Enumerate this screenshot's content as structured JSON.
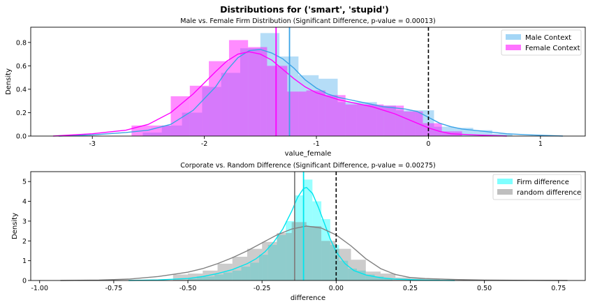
{
  "figure": {
    "suptitle": "Distributions for ('smart', 'stupid')"
  },
  "chart_data": [
    {
      "type": "histogram",
      "title": "Male vs. Female Firm Distribution (Significant Difference, p-value = 0.00013)",
      "xlabel": "value_female",
      "ylabel": "Density",
      "xlim": [
        -3.55,
        1.4
      ],
      "ylim": [
        0,
        0.93
      ],
      "xticks": [
        -3,
        -2,
        -1,
        0,
        1
      ],
      "yticks": [
        0.0,
        0.2,
        0.4,
        0.6,
        0.8
      ],
      "grid": false,
      "legend_position": "top-right",
      "series": [
        {
          "name": "Male Context",
          "color": "#5ab4ee",
          "bins": [
            [
              -2.55,
              -2.38,
              0.03
            ],
            [
              -2.38,
              -2.2,
              0.09
            ],
            [
              -2.2,
              -2.02,
              0.2
            ],
            [
              -2.02,
              -1.85,
              0.42
            ],
            [
              -1.85,
              -1.68,
              0.54
            ],
            [
              -1.68,
              -1.5,
              0.75
            ],
            [
              -1.5,
              -1.33,
              0.88
            ],
            [
              -1.33,
              -1.16,
              0.68
            ],
            [
              -1.16,
              -0.98,
              0.52
            ],
            [
              -0.98,
              -0.81,
              0.49
            ],
            [
              -0.81,
              -0.64,
              0.29
            ],
            [
              -0.64,
              -0.46,
              0.29
            ],
            [
              -0.46,
              -0.29,
              0.26
            ],
            [
              -0.29,
              -0.12,
              0.22
            ],
            [
              -0.12,
              0.05,
              0.22
            ],
            [
              0.05,
              0.23,
              0.08
            ],
            [
              0.23,
              0.4,
              0.07
            ],
            [
              0.4,
              0.57,
              0.05
            ],
            [
              0.57,
              0.75,
              0.02
            ]
          ],
          "kde": [
            [
              -3.3,
              0.0
            ],
            [
              -3.0,
              0.01
            ],
            [
              -2.7,
              0.03
            ],
            [
              -2.5,
              0.05
            ],
            [
              -2.3,
              0.1
            ],
            [
              -2.1,
              0.22
            ],
            [
              -1.9,
              0.42
            ],
            [
              -1.8,
              0.56
            ],
            [
              -1.7,
              0.67
            ],
            [
              -1.6,
              0.73
            ],
            [
              -1.5,
              0.74
            ],
            [
              -1.4,
              0.71
            ],
            [
              -1.3,
              0.66
            ],
            [
              -1.2,
              0.58
            ],
            [
              -1.1,
              0.48
            ],
            [
              -1.0,
              0.41
            ],
            [
              -0.9,
              0.36
            ],
            [
              -0.8,
              0.33
            ],
            [
              -0.7,
              0.31
            ],
            [
              -0.6,
              0.29
            ],
            [
              -0.5,
              0.27
            ],
            [
              -0.4,
              0.25
            ],
            [
              -0.3,
              0.24
            ],
            [
              -0.2,
              0.23
            ],
            [
              -0.1,
              0.21
            ],
            [
              0.0,
              0.16
            ],
            [
              0.1,
              0.11
            ],
            [
              0.2,
              0.08
            ],
            [
              0.3,
              0.06
            ],
            [
              0.4,
              0.05
            ],
            [
              0.5,
              0.04
            ],
            [
              0.7,
              0.02
            ],
            [
              0.9,
              0.01
            ],
            [
              1.2,
              0.0
            ]
          ],
          "mean_line": -1.24
        },
        {
          "name": "Female Context",
          "color": "#ff00ff",
          "bins": [
            [
              -2.65,
              -2.48,
              0.09
            ],
            [
              -2.48,
              -2.3,
              0.09
            ],
            [
              -2.3,
              -2.13,
              0.34
            ],
            [
              -2.13,
              -1.96,
              0.43
            ],
            [
              -1.96,
              -1.78,
              0.64
            ],
            [
              -1.78,
              -1.61,
              0.82
            ],
            [
              -1.61,
              -1.44,
              0.76
            ],
            [
              -1.44,
              -1.26,
              0.6
            ],
            [
              -1.26,
              -1.09,
              0.38
            ],
            [
              -1.09,
              -0.92,
              0.39
            ],
            [
              -0.92,
              -0.74,
              0.35
            ],
            [
              -0.74,
              -0.57,
              0.27
            ],
            [
              -0.57,
              -0.4,
              0.27
            ],
            [
              -0.4,
              -0.22,
              0.26
            ],
            [
              -0.22,
              -0.05,
              0.21
            ],
            [
              -0.05,
              0.12,
              0.11
            ],
            [
              0.12,
              0.3,
              0.04
            ]
          ],
          "kde": [
            [
              -3.35,
              0.0
            ],
            [
              -3.0,
              0.02
            ],
            [
              -2.7,
              0.05
            ],
            [
              -2.5,
              0.1
            ],
            [
              -2.3,
              0.2
            ],
            [
              -2.1,
              0.36
            ],
            [
              -1.9,
              0.55
            ],
            [
              -1.8,
              0.64
            ],
            [
              -1.7,
              0.7
            ],
            [
              -1.6,
              0.72
            ],
            [
              -1.5,
              0.7
            ],
            [
              -1.4,
              0.65
            ],
            [
              -1.3,
              0.57
            ],
            [
              -1.2,
              0.49
            ],
            [
              -1.1,
              0.42
            ],
            [
              -1.0,
              0.37
            ],
            [
              -0.9,
              0.34
            ],
            [
              -0.8,
              0.31
            ],
            [
              -0.7,
              0.29
            ],
            [
              -0.6,
              0.27
            ],
            [
              -0.5,
              0.25
            ],
            [
              -0.4,
              0.22
            ],
            [
              -0.3,
              0.19
            ],
            [
              -0.2,
              0.15
            ],
            [
              -0.1,
              0.11
            ],
            [
              0.0,
              0.07
            ],
            [
              0.1,
              0.04
            ],
            [
              0.2,
              0.02
            ],
            [
              0.4,
              0.01
            ],
            [
              0.7,
              0.0
            ]
          ],
          "mean_line": -1.36
        }
      ],
      "reference_line": 0
    },
    {
      "type": "histogram",
      "title": "Corporate vs. Random Difference (Significant Difference, p-value = 0.00275)",
      "xlabel": "difference",
      "ylabel": "Density",
      "xlim": [
        -1.03,
        0.84
      ],
      "ylim": [
        0,
        5.5
      ],
      "xticks": [
        -1.0,
        -0.75,
        -0.5,
        -0.25,
        0.0,
        0.25,
        0.5,
        0.75
      ],
      "xticklabels": [
        "-1.00",
        "-0.75",
        "-0.50",
        "-0.25",
        "0.00",
        "0.25",
        "0.50",
        "0.75"
      ],
      "yticks": [
        0,
        1,
        2,
        3,
        4,
        5
      ],
      "grid": false,
      "legend_position": "top-right",
      "series": [
        {
          "name": "Firm difference",
          "color": "#00ffff",
          "bins": [
            [
              -0.5,
              -0.47,
              0.1
            ],
            [
              -0.47,
              -0.44,
              0.2
            ],
            [
              -0.44,
              -0.41,
              0.2
            ],
            [
              -0.41,
              -0.38,
              0.3
            ],
            [
              -0.38,
              -0.35,
              0.4
            ],
            [
              -0.35,
              -0.32,
              0.5
            ],
            [
              -0.32,
              -0.29,
              0.7
            ],
            [
              -0.29,
              -0.26,
              0.9
            ],
            [
              -0.26,
              -0.23,
              1.3
            ],
            [
              -0.23,
              -0.2,
              1.8
            ],
            [
              -0.2,
              -0.17,
              2.3
            ],
            [
              -0.17,
              -0.14,
              3.0
            ],
            [
              -0.14,
              -0.11,
              4.3
            ],
            [
              -0.11,
              -0.08,
              5.1
            ],
            [
              -0.08,
              -0.05,
              4.0
            ],
            [
              -0.05,
              -0.02,
              3.1
            ],
            [
              -0.02,
              0.01,
              1.8
            ],
            [
              0.01,
              0.04,
              1.0
            ],
            [
              0.04,
              0.07,
              0.6
            ],
            [
              0.07,
              0.1,
              0.5
            ],
            [
              0.1,
              0.13,
              0.3
            ],
            [
              0.13,
              0.16,
              0.2
            ],
            [
              0.16,
              0.19,
              0.1
            ]
          ],
          "kde": [
            [
              -0.7,
              0.0
            ],
            [
              -0.6,
              0.03
            ],
            [
              -0.5,
              0.1
            ],
            [
              -0.45,
              0.2
            ],
            [
              -0.4,
              0.35
            ],
            [
              -0.35,
              0.55
            ],
            [
              -0.3,
              0.85
            ],
            [
              -0.27,
              1.1
            ],
            [
              -0.24,
              1.45
            ],
            [
              -0.21,
              1.95
            ],
            [
              -0.18,
              2.6
            ],
            [
              -0.15,
              3.5
            ],
            [
              -0.13,
              4.2
            ],
            [
              -0.11,
              4.65
            ],
            [
              -0.1,
              4.7
            ],
            [
              -0.08,
              4.4
            ],
            [
              -0.06,
              3.7
            ],
            [
              -0.04,
              2.9
            ],
            [
              -0.02,
              2.1
            ],
            [
              0.0,
              1.45
            ],
            [
              0.03,
              0.85
            ],
            [
              0.06,
              0.5
            ],
            [
              0.1,
              0.28
            ],
            [
              0.15,
              0.14
            ],
            [
              0.2,
              0.07
            ],
            [
              0.3,
              0.02
            ],
            [
              0.4,
              0.0
            ]
          ],
          "mean_line": -0.11
        },
        {
          "name": "random difference",
          "color": "#808080",
          "bins": [
            [
              -0.55,
              -0.5,
              0.3
            ],
            [
              -0.5,
              -0.45,
              0.35
            ],
            [
              -0.45,
              -0.4,
              0.5
            ],
            [
              -0.4,
              -0.35,
              0.85
            ],
            [
              -0.35,
              -0.3,
              1.2
            ],
            [
              -0.3,
              -0.25,
              1.6
            ],
            [
              -0.25,
              -0.2,
              1.95
            ],
            [
              -0.2,
              -0.15,
              2.4
            ],
            [
              -0.15,
              -0.1,
              2.95
            ],
            [
              -0.1,
              -0.05,
              2.75
            ],
            [
              -0.05,
              0.0,
              2.0
            ],
            [
              0.0,
              0.05,
              1.6
            ],
            [
              0.05,
              0.1,
              1.05
            ],
            [
              0.1,
              0.15,
              0.45
            ],
            [
              0.15,
              0.2,
              0.35
            ],
            [
              0.2,
              0.25,
              0.15
            ],
            [
              0.25,
              0.3,
              0.1
            ],
            [
              0.3,
              0.35,
              0.08
            ]
          ],
          "kde": [
            [
              -0.93,
              0.0
            ],
            [
              -0.8,
              0.02
            ],
            [
              -0.7,
              0.07
            ],
            [
              -0.6,
              0.2
            ],
            [
              -0.5,
              0.42
            ],
            [
              -0.45,
              0.6
            ],
            [
              -0.4,
              0.85
            ],
            [
              -0.35,
              1.15
            ],
            [
              -0.3,
              1.5
            ],
            [
              -0.25,
              1.9
            ],
            [
              -0.2,
              2.3
            ],
            [
              -0.15,
              2.6
            ],
            [
              -0.1,
              2.75
            ],
            [
              -0.05,
              2.65
            ],
            [
              0.0,
              2.3
            ],
            [
              0.05,
              1.75
            ],
            [
              0.1,
              1.1
            ],
            [
              0.15,
              0.6
            ],
            [
              0.2,
              0.3
            ],
            [
              0.25,
              0.15
            ],
            [
              0.3,
              0.1
            ],
            [
              0.4,
              0.05
            ],
            [
              0.5,
              0.02
            ],
            [
              0.6,
              0.01
            ],
            [
              0.78,
              0.0
            ]
          ],
          "mean_line": -0.14
        }
      ],
      "reference_line": 0
    }
  ]
}
